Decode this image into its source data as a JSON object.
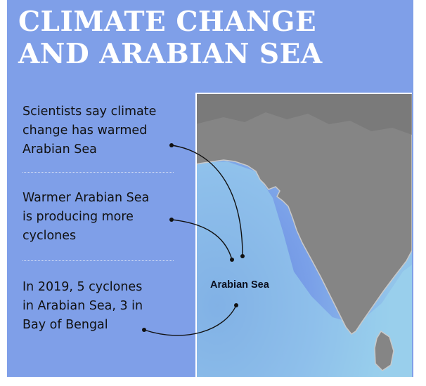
{
  "title": {
    "line1": "CLIMATE CHANGE",
    "line2": "AND ARABIAN SEA"
  },
  "facts": [
    {
      "lines": [
        "Scientists say climate",
        "change has warmed",
        "Arabian Sea"
      ]
    },
    {
      "lines": [
        "Warmer Arabian Sea",
        "is producing more",
        "cyclones"
      ]
    },
    {
      "lines": [
        "In 2019, 5 cyclones",
        "in Arabian Sea, 3 in",
        "Bay of Bengal"
      ]
    }
  ],
  "map": {
    "label": "Arabian Sea"
  },
  "colors": {
    "background": "#7f9fe8",
    "title": "#ffffff",
    "land": "#858585",
    "sea_deep": "#6f8fe0",
    "sea_shallow": "#a8dcec"
  }
}
